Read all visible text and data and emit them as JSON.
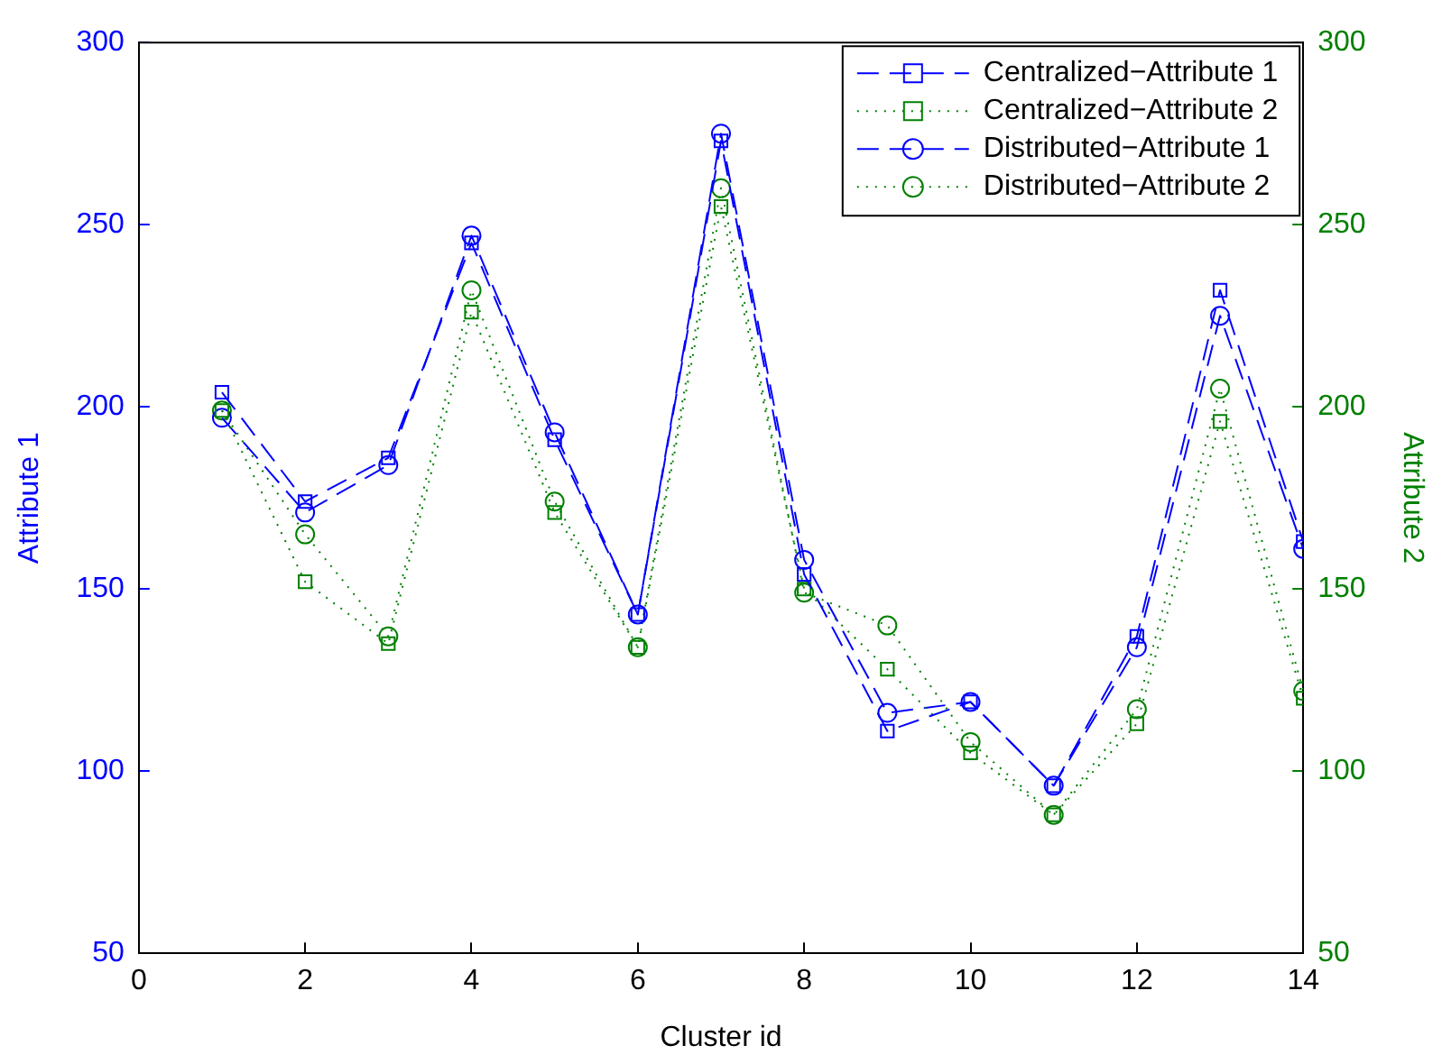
{
  "chart_data": {
    "type": "line",
    "xlabel": "Cluster id",
    "ylabel": "Attribute 1",
    "y2label": "Attribute 2",
    "x": [
      1,
      2,
      3,
      4,
      5,
      6,
      7,
      8,
      9,
      10,
      11,
      12,
      13,
      14
    ],
    "xlim": [
      0,
      14
    ],
    "xticks": [
      0,
      2,
      4,
      6,
      8,
      10,
      12,
      14
    ],
    "ylim": [
      50,
      300
    ],
    "yticks": [
      50,
      100,
      150,
      200,
      250,
      300
    ],
    "y2lim": [
      50,
      300
    ],
    "y2ticks": [
      50,
      100,
      150,
      200,
      250,
      300
    ],
    "grid": false,
    "legend": "top right",
    "series": [
      {
        "name": "Centralized−Attribute 1",
        "color": "#0000ff",
        "marker": "square",
        "line_style": "dashed",
        "values": [
          204,
          174,
          186,
          245,
          191,
          143,
          273,
          154,
          111,
          119,
          96,
          137,
          232,
          163
        ]
      },
      {
        "name": "Centralized−Attribute 2",
        "color": "#008000",
        "axis": "y2",
        "marker": "square",
        "line_style": "dotted",
        "values": [
          199,
          152,
          135,
          226,
          171,
          134,
          255,
          150,
          128,
          105,
          88,
          113,
          196,
          120
        ]
      },
      {
        "name": "Distributed−Attribute 1",
        "color": "#0000ff",
        "marker": "circle",
        "line_style": "dashed",
        "values": [
          197,
          171,
          184,
          247,
          193,
          143,
          275,
          158,
          116,
          119,
          96,
          134,
          225,
          161
        ]
      },
      {
        "name": "Distributed−Attribute 2",
        "color": "#008000",
        "axis": "y2",
        "marker": "circle",
        "line_style": "dotted",
        "values": [
          199,
          165,
          137,
          232,
          174,
          134,
          260,
          149,
          140,
          108,
          88,
          117,
          205,
          122
        ]
      }
    ]
  }
}
